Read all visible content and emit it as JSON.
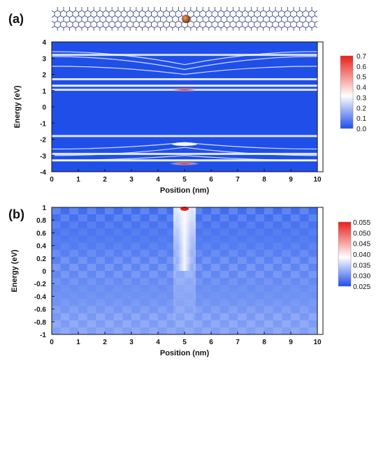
{
  "figure": {
    "panel_a_label": "(a)",
    "panel_b_label": "(b)"
  },
  "colors": {
    "low": "#1f4fe8",
    "mid": "#ffffff",
    "high": "#e8201a",
    "atom": "#9a4a1c",
    "lattice": "#2a3a7a"
  },
  "chart_data": [
    {
      "type": "heatmap",
      "panel": "(a)",
      "xlabel": "Position (nm)",
      "ylabel": "Energy (eV)",
      "xlim": [
        0,
        10
      ],
      "ylim": [
        -4,
        4
      ],
      "xticks": [
        "0",
        "1",
        "2",
        "3",
        "4",
        "5",
        "6",
        "7",
        "8",
        "9",
        "10"
      ],
      "yticks": [
        "4",
        "3",
        "2",
        "1",
        "0",
        "-1",
        "-2",
        "-3",
        "-4"
      ],
      "colorbar": {
        "ticks": [
          "0.7",
          "0.6",
          "0.5",
          "0.4",
          "0.3",
          "0.2",
          "0.1",
          "0.0"
        ],
        "range": [
          0,
          0.7
        ]
      },
      "bands": [
        {
          "energy": 3.2,
          "value": 0.25
        },
        {
          "energy": 1.7,
          "value": 0.3
        },
        {
          "energy": 1.3,
          "value": 0.35
        },
        {
          "energy": 1.05,
          "value": 0.3
        },
        {
          "energy": -1.8,
          "value": 0.3
        },
        {
          "energy": -2.9,
          "value": 0.3
        },
        {
          "energy": -3.3,
          "value": 0.35
        }
      ],
      "defect_states": [
        {
          "x": 5.0,
          "energy": 1.05,
          "value": 0.7
        },
        {
          "x": 5.0,
          "energy": -2.3,
          "value": 0.3
        },
        {
          "x": 5.0,
          "energy": -3.5,
          "value": 0.7
        }
      ]
    },
    {
      "type": "heatmap",
      "panel": "(b)",
      "xlabel": "Position (nm)",
      "ylabel": "Energy (eV)",
      "xlim": [
        0,
        10
      ],
      "ylim": [
        -1,
        1
      ],
      "xticks": [
        "0",
        "1",
        "2",
        "3",
        "4",
        "5",
        "6",
        "7",
        "8",
        "9",
        "10"
      ],
      "yticks": [
        "1",
        "0.8",
        "0.6",
        "0.4",
        "0.2",
        "0",
        "-0.2",
        "-0.4",
        "-0.6",
        "-0.8",
        "-1"
      ],
      "colorbar": {
        "ticks": [
          "0.055",
          "0.050",
          "0.045",
          "0.040",
          "0.035",
          "0.030",
          "0.025"
        ],
        "range": [
          0.025,
          0.055
        ]
      },
      "hotspot": {
        "x": 5.0,
        "energy": 1.0,
        "value": 0.055
      }
    }
  ]
}
